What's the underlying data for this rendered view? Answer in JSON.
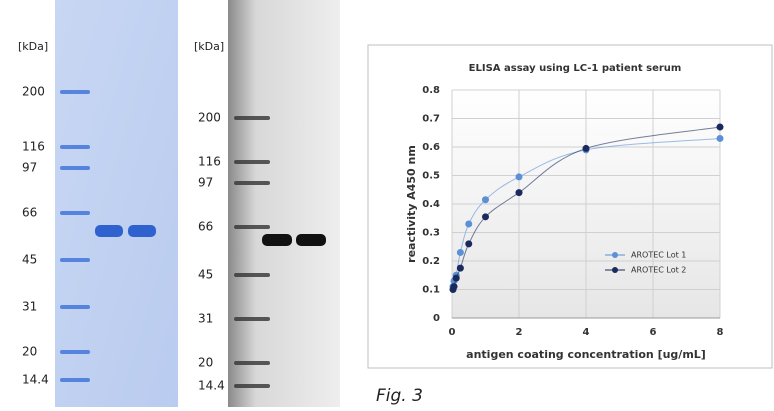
{
  "gels": [
    {
      "unit": "[kDa]",
      "markers": [
        200,
        116,
        97,
        66,
        45,
        31,
        20,
        14.4
      ]
    },
    {
      "unit": "[kDa]",
      "markers": [
        200,
        116,
        97,
        66,
        45,
        31,
        20,
        14.4
      ]
    }
  ],
  "chart_data": {
    "type": "line",
    "title": "ELISA assay using LC-1 patient serum",
    "x_label": "antigen coating concentration [ug/mL]",
    "y_label": "reactivity A450 nm",
    "xlim": [
      0,
      8
    ],
    "xticks": [
      0,
      2,
      4,
      6,
      8
    ],
    "ylim": [
      0,
      0.8
    ],
    "yticks": [
      0,
      0.1,
      0.2,
      0.3,
      0.4,
      0.5,
      0.6,
      0.7,
      0.8
    ],
    "grid": true,
    "legend": "lower right",
    "series": [
      {
        "name": "AROTEC Lot 1",
        "color": "#5b8fd6",
        "x": [
          0.03,
          0.06,
          0.125,
          0.25,
          0.5,
          1,
          2,
          4,
          8
        ],
        "values": [
          0.11,
          0.13,
          0.15,
          0.23,
          0.33,
          0.415,
          0.495,
          0.59,
          0.63
        ]
      },
      {
        "name": "AROTEC Lot 2",
        "color": "#1a2a5c",
        "x": [
          0.03,
          0.06,
          0.125,
          0.25,
          0.5,
          1,
          2,
          4,
          8
        ],
        "values": [
          0.1,
          0.11,
          0.14,
          0.175,
          0.26,
          0.355,
          0.44,
          0.595,
          0.67
        ]
      }
    ]
  },
  "caption": "Fig. 3"
}
